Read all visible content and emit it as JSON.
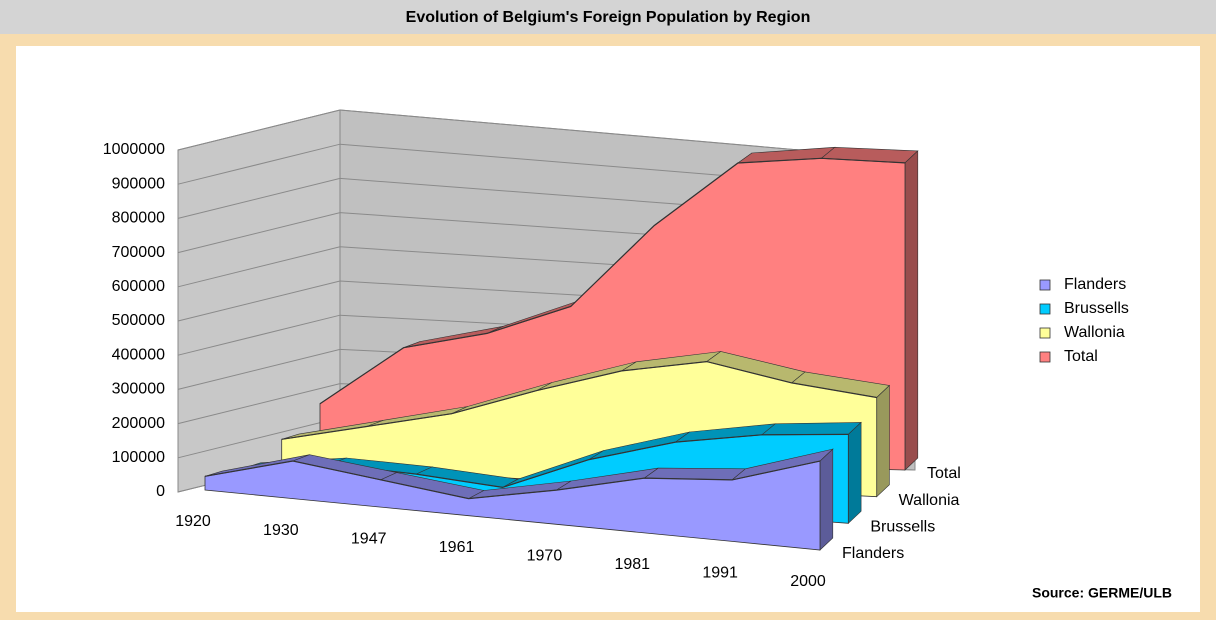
{
  "chart_data": {
    "type": "area3d",
    "title": "Evolution of Belgium's Foreign Population by Region",
    "source": "Source: GERME/ULB",
    "categories": [
      "1920",
      "1930",
      "1947",
      "1961",
      "1970",
      "1981",
      "1991",
      "2000"
    ],
    "series": [
      {
        "name": "Flanders",
        "color": "#9999ff",
        "values": [
          40000,
          110000,
          80000,
          50000,
          100000,
          160000,
          180000,
          260000
        ]
      },
      {
        "name": "Brussells",
        "color": "#00ccff",
        "values": [
          30000,
          60000,
          50000,
          30000,
          130000,
          200000,
          240000,
          260000
        ]
      },
      {
        "name": "Wallonia",
        "color": "#ffff99",
        "values": [
          80000,
          130000,
          180000,
          260000,
          330000,
          370000,
          320000,
          290000
        ]
      },
      {
        "name": "Total",
        "color": "#ff8080",
        "values": [
          150000,
          320000,
          368000,
          453000,
          696000,
          885000,
          905000,
          898000
        ]
      }
    ],
    "ylim": [
      0,
      1000000
    ],
    "yticks": [
      0,
      100000,
      200000,
      300000,
      400000,
      500000,
      600000,
      700000,
      800000,
      900000,
      1000000
    ],
    "grid": true,
    "legend": "right"
  }
}
